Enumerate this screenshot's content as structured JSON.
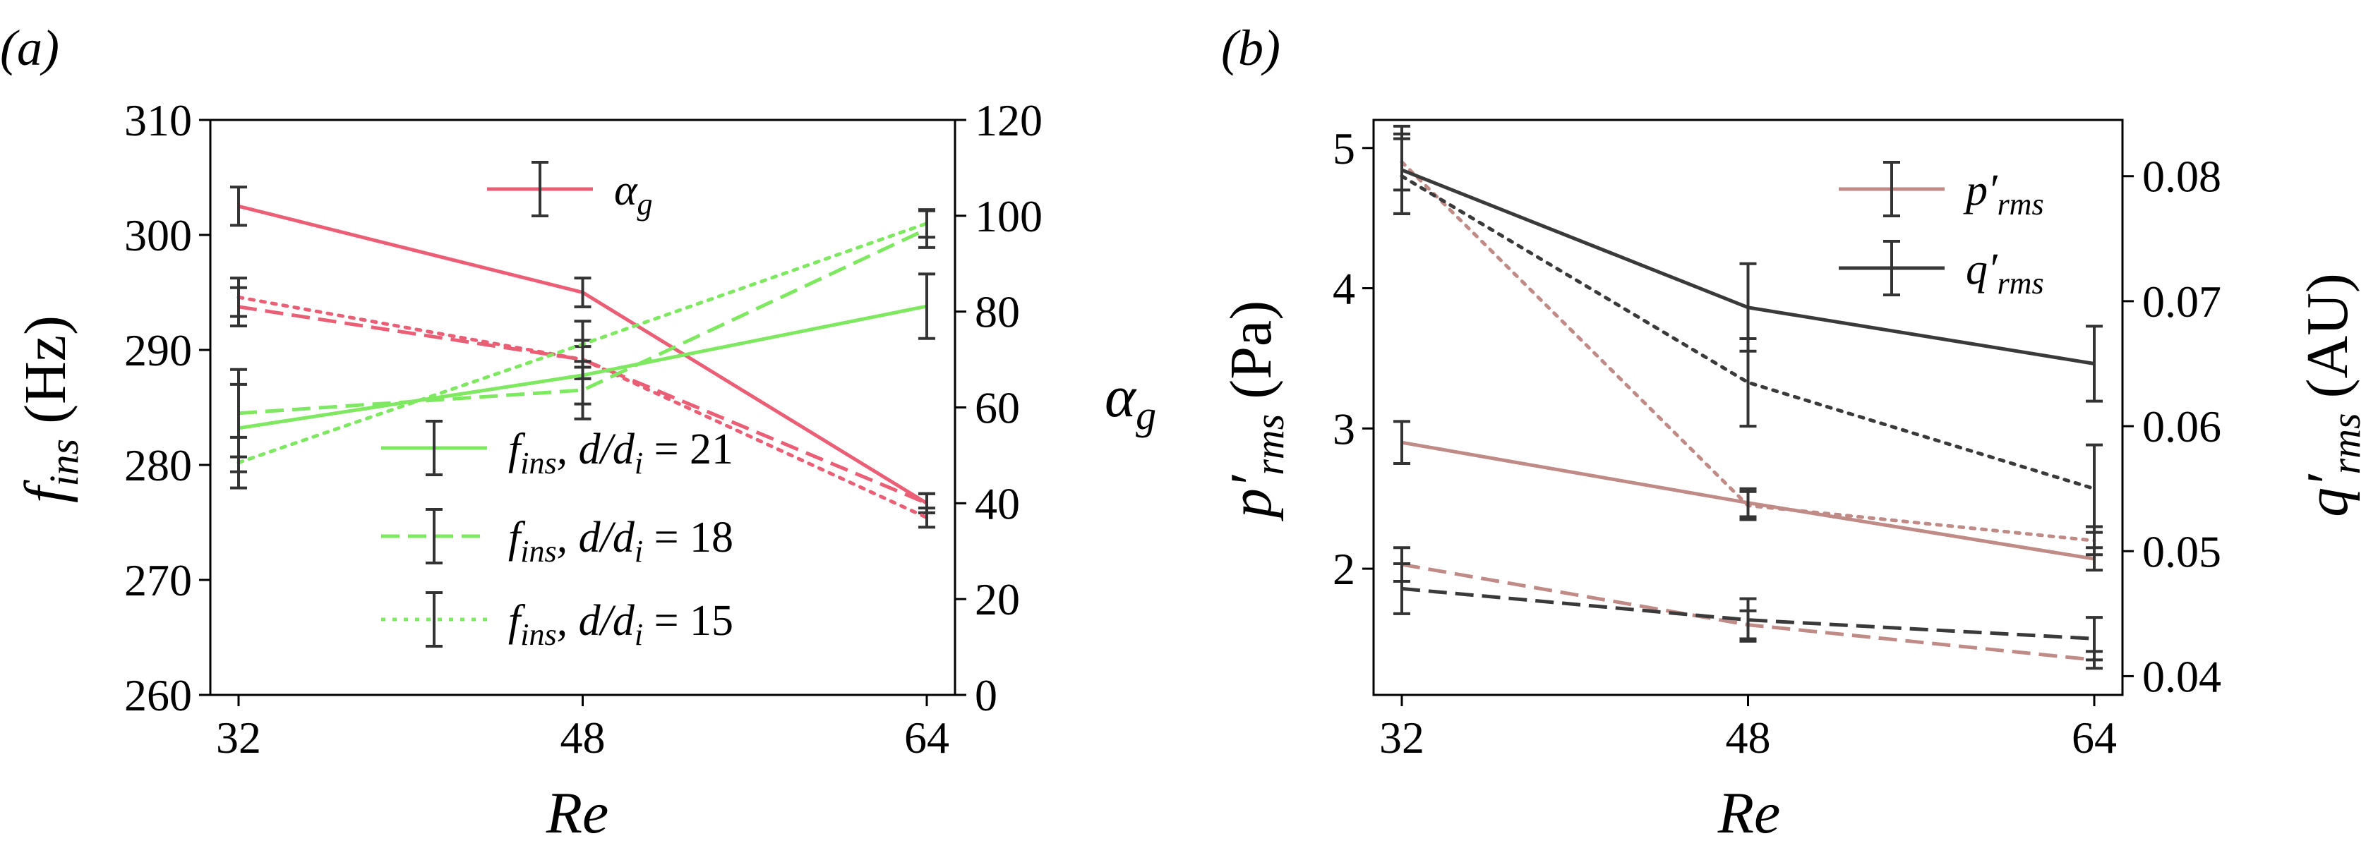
{
  "chart_data": [
    {
      "panel": "(a)",
      "type": "line",
      "xlabel": "Re",
      "ylabel_left": "f_ins (Hz)",
      "ylabel_right": "α_g",
      "categories": [
        32,
        48,
        64
      ],
      "ylim_left": [
        260,
        310
      ],
      "yticks_left": [
        260,
        270,
        280,
        290,
        300,
        310
      ],
      "ylim_right": [
        0,
        120
      ],
      "yticks_right": [
        0,
        20,
        40,
        60,
        80,
        100,
        120
      ],
      "series": [
        {
          "name": "α_g (d/d_i = 21)",
          "axis": "right",
          "color": "#ea5f76",
          "linestyle": "solid",
          "values": [
            102,
            84,
            40
          ],
          "errors": [
            4,
            3,
            2
          ]
        },
        {
          "name": "α_g (d/d_i = 18)",
          "axis": "right",
          "color": "#ea5f76",
          "linestyle": "dashed",
          "values": [
            81,
            70,
            40
          ],
          "errors": [
            4,
            4,
            2
          ]
        },
        {
          "name": "α_g (d/d_i = 15)",
          "axis": "right",
          "color": "#ea5f76",
          "linestyle": "dotted",
          "values": [
            83,
            70,
            37
          ],
          "errors": [
            4,
            4,
            2
          ]
        },
        {
          "name": "f_ins, d/d_i = 21",
          "axis": "left",
          "color": "#7ee861",
          "linestyle": "solid",
          "values": [
            283.2,
            287.8,
            293.8
          ],
          "errors": [
            3.8,
            2.5,
            2.8
          ]
        },
        {
          "name": "f_ins, d/d_i = 18",
          "axis": "left",
          "color": "#7ee861",
          "linestyle": "dashed",
          "values": [
            284.5,
            286.5,
            300.5
          ],
          "errors": [
            3.8,
            2.5,
            1.6
          ]
        },
        {
          "name": "f_ins, d/d_i = 15",
          "axis": "left",
          "color": "#7ee861",
          "linestyle": "dotted",
          "values": [
            280.2,
            290.5,
            301.0
          ],
          "errors": [
            2.2,
            2.0,
            1.2
          ]
        }
      ],
      "legend": [
        {
          "label_main": "α",
          "label_sub": "g",
          "color": "#ea5f76",
          "linestyle": "solid"
        },
        {
          "label_main": "f",
          "label_sub": "ins",
          "label_rest": ", d/d",
          "label_rest_sub": "i",
          "label_eq": " = 21",
          "color": "#7ee861",
          "linestyle": "solid"
        },
        {
          "label_main": "f",
          "label_sub": "ins",
          "label_rest": ", d/d",
          "label_rest_sub": "i",
          "label_eq": " = 18",
          "color": "#7ee861",
          "linestyle": "dashed"
        },
        {
          "label_main": "f",
          "label_sub": "ins",
          "label_rest": ", d/d",
          "label_rest_sub": "i",
          "label_eq": " = 15",
          "color": "#7ee861",
          "linestyle": "dotted"
        }
      ]
    },
    {
      "panel": "(b)",
      "type": "line",
      "xlabel": "Re",
      "ylabel_left": "p'_rms (Pa)",
      "ylabel_right": "q'_rms (AU)",
      "categories": [
        32,
        48,
        64
      ],
      "ylim_left": [
        1.1,
        5.2
      ],
      "yticks_left": [
        2,
        3,
        4,
        5
      ],
      "ylim_right": [
        0.0385,
        0.0845
      ],
      "yticks_right": [
        0.04,
        0.05,
        0.06,
        0.07,
        0.08
      ],
      "yticklabels_right": [
        "0.04",
        "0.05",
        "0.06",
        "0.07",
        "0.08"
      ],
      "series": [
        {
          "name": "p'_rms (solid)",
          "axis": "left",
          "color": "#c08a86",
          "linestyle": "solid",
          "values": [
            2.9,
            2.47,
            2.07
          ],
          "errors": [
            0.15,
            0.1,
            0.08
          ]
        },
        {
          "name": "p'_rms (dashed)",
          "axis": "left",
          "color": "#c08a86",
          "linestyle": "dashed",
          "values": [
            2.03,
            1.6,
            1.35
          ],
          "errors": [
            0.12,
            0.1,
            0.06
          ]
        },
        {
          "name": "p'_rms (dotted)",
          "axis": "left",
          "color": "#c08a86",
          "linestyle": "dotted",
          "values": [
            4.9,
            2.45,
            2.2
          ],
          "errors": [
            0.2,
            0.1,
            0.1
          ]
        },
        {
          "name": "q'_rms (solid)",
          "axis": "right",
          "color": "#3a3a3a",
          "linestyle": "solid",
          "values": [
            0.0805,
            0.0695,
            0.065
          ],
          "errors": [
            0.0035,
            0.0035,
            0.003
          ]
        },
        {
          "name": "q'_rms (dashed)",
          "axis": "right",
          "color": "#3a3a3a",
          "linestyle": "dashed",
          "values": [
            0.047,
            0.0445,
            0.043
          ],
          "errors": [
            0.002,
            0.0017,
            0.0017
          ]
        },
        {
          "name": "q'_rms (dotted)",
          "axis": "right",
          "color": "#3a3a3a",
          "linestyle": "dotted",
          "values": [
            0.08,
            0.0635,
            0.055
          ],
          "errors": [
            0.003,
            0.0035,
            0.0035
          ]
        }
      ],
      "legend": [
        {
          "label_main": "p′",
          "label_sub": "rms",
          "color": "#c08a86",
          "linestyle": "solid"
        },
        {
          "label_main": "q′",
          "label_sub": "rms",
          "color": "#3a3a3a",
          "linestyle": "solid"
        }
      ]
    }
  ],
  "labels": {
    "panel_a": "(a)",
    "panel_b": "(b)",
    "xlabel": "Re",
    "a_ylabel_main": "f",
    "a_ylabel_sub": "ins",
    "a_ylabel_unit": " (Hz)",
    "a_ylabel_right_main": "α",
    "a_ylabel_right_sub": "g",
    "b_ylabel_main": "p′",
    "b_ylabel_sub": "rms",
    "b_ylabel_unit": " (Pa)",
    "b_ylabel_right_main": "q′",
    "b_ylabel_right_sub": "rms",
    "b_ylabel_right_unit": " (AU)"
  },
  "colors": {
    "alpha_g": "#ea5f76",
    "f_ins": "#7ee861",
    "p_rms": "#c08a86",
    "q_rms": "#3a3a3a",
    "errorbar": "#333333"
  }
}
